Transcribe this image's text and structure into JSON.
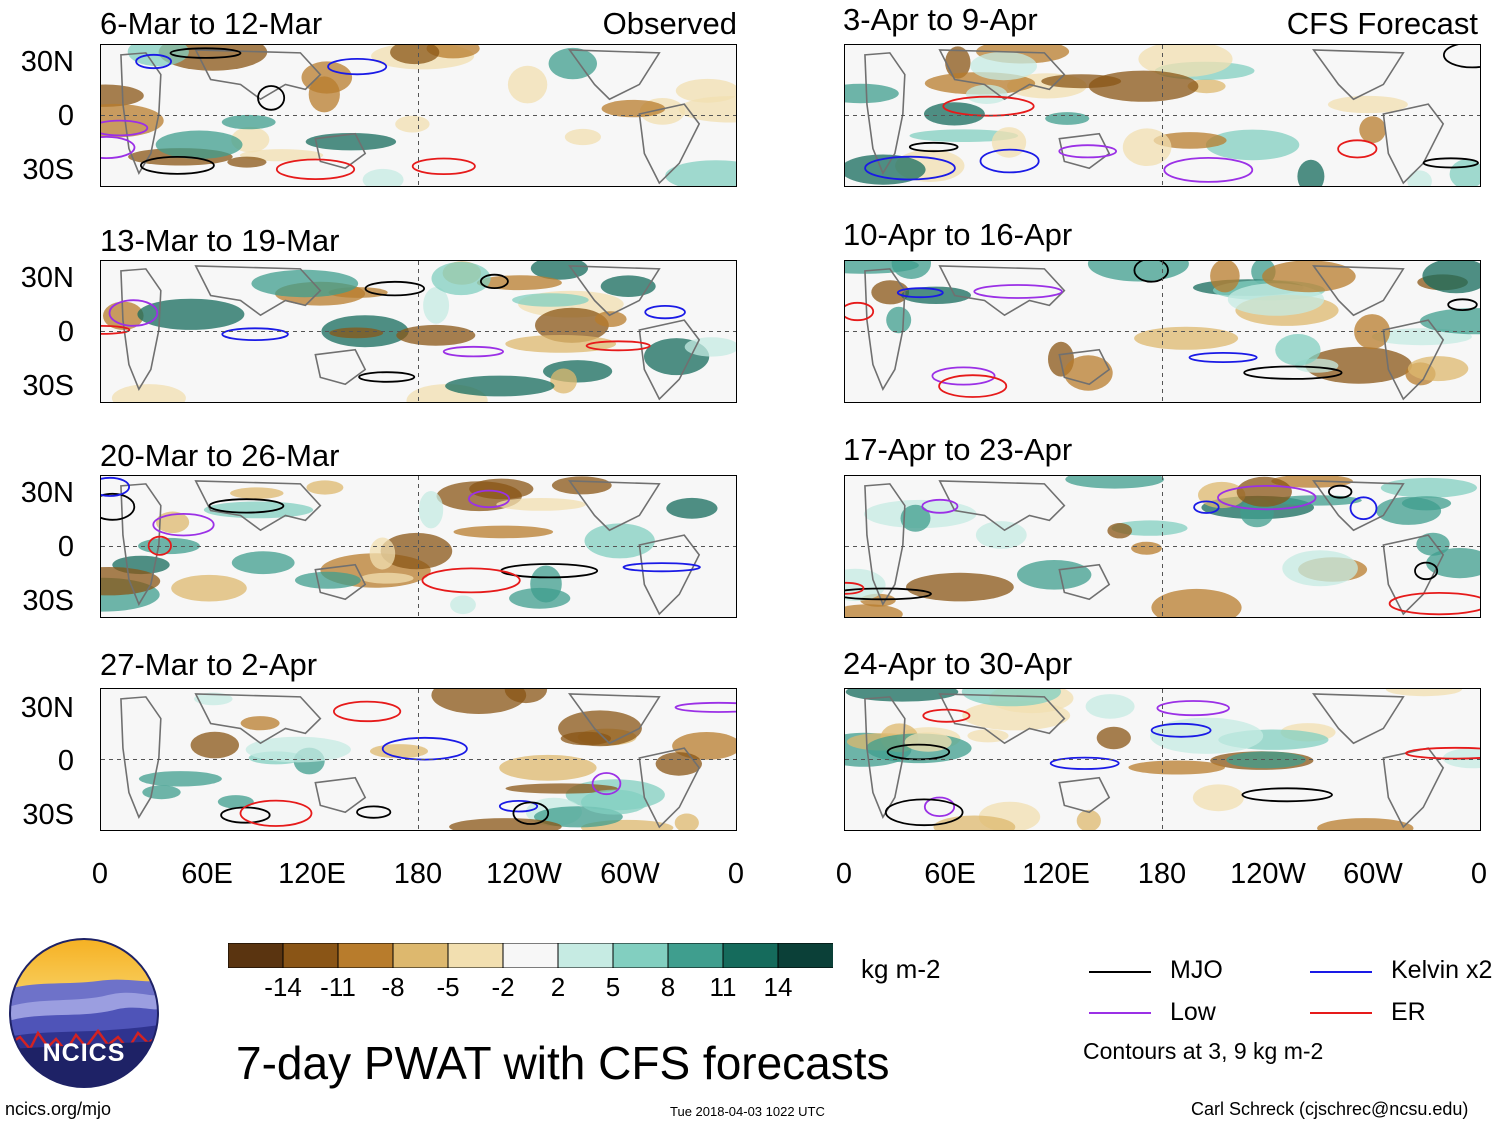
{
  "panels": {
    "left": [
      {
        "title": "6-Mar to 12-Mar",
        "tag": "Observed"
      },
      {
        "title": "13-Mar to 19-Mar",
        "tag": ""
      },
      {
        "title": "20-Mar to 26-Mar",
        "tag": ""
      },
      {
        "title": "27-Mar to 2-Apr",
        "tag": ""
      }
    ],
    "right": [
      {
        "title": "3-Apr to 9-Apr",
        "tag": "CFS Forecast"
      },
      {
        "title": "10-Apr to 16-Apr",
        "tag": ""
      },
      {
        "title": "17-Apr to 23-Apr",
        "tag": ""
      },
      {
        "title": "24-Apr to 30-Apr",
        "tag": ""
      }
    ]
  },
  "lat_labels": [
    "30N",
    "0",
    "30S"
  ],
  "lon_labels": [
    "0",
    "60E",
    "120E",
    "180",
    "120W",
    "60W",
    "0"
  ],
  "colorbar": {
    "colors": [
      "#5a3410",
      "#8a5516",
      "#b87c2c",
      "#ddb86e",
      "#f2dfb0",
      "#f7f7f7",
      "#c6ebe3",
      "#82cfc0",
      "#3f9e8e",
      "#156b5c",
      "#0b4038"
    ],
    "ticks": [
      "-14",
      "-11",
      "-8",
      "-5",
      "-2",
      "2",
      "5",
      "8",
      "11",
      "14"
    ],
    "units": "kg m-2"
  },
  "legend": {
    "mjo": {
      "label": "MJO",
      "color": "#000000"
    },
    "kelvin": {
      "label": "Kelvin x2",
      "color": "#1a1ae6"
    },
    "low": {
      "label": "Low",
      "color": "#9b30e6"
    },
    "er": {
      "label": "ER",
      "color": "#e61a1a"
    },
    "note": "Contours at 3, 9 kg m-2"
  },
  "logo": {
    "text": "NCICS"
  },
  "main_title": "7-day PWAT with CFS forecasts",
  "footer": {
    "url": "ncics.org/mjo",
    "timestamp": "Tue 2018-04-03 1022 UTC",
    "author": "Carl Schreck (cjschrec@ncsu.edu)"
  }
}
